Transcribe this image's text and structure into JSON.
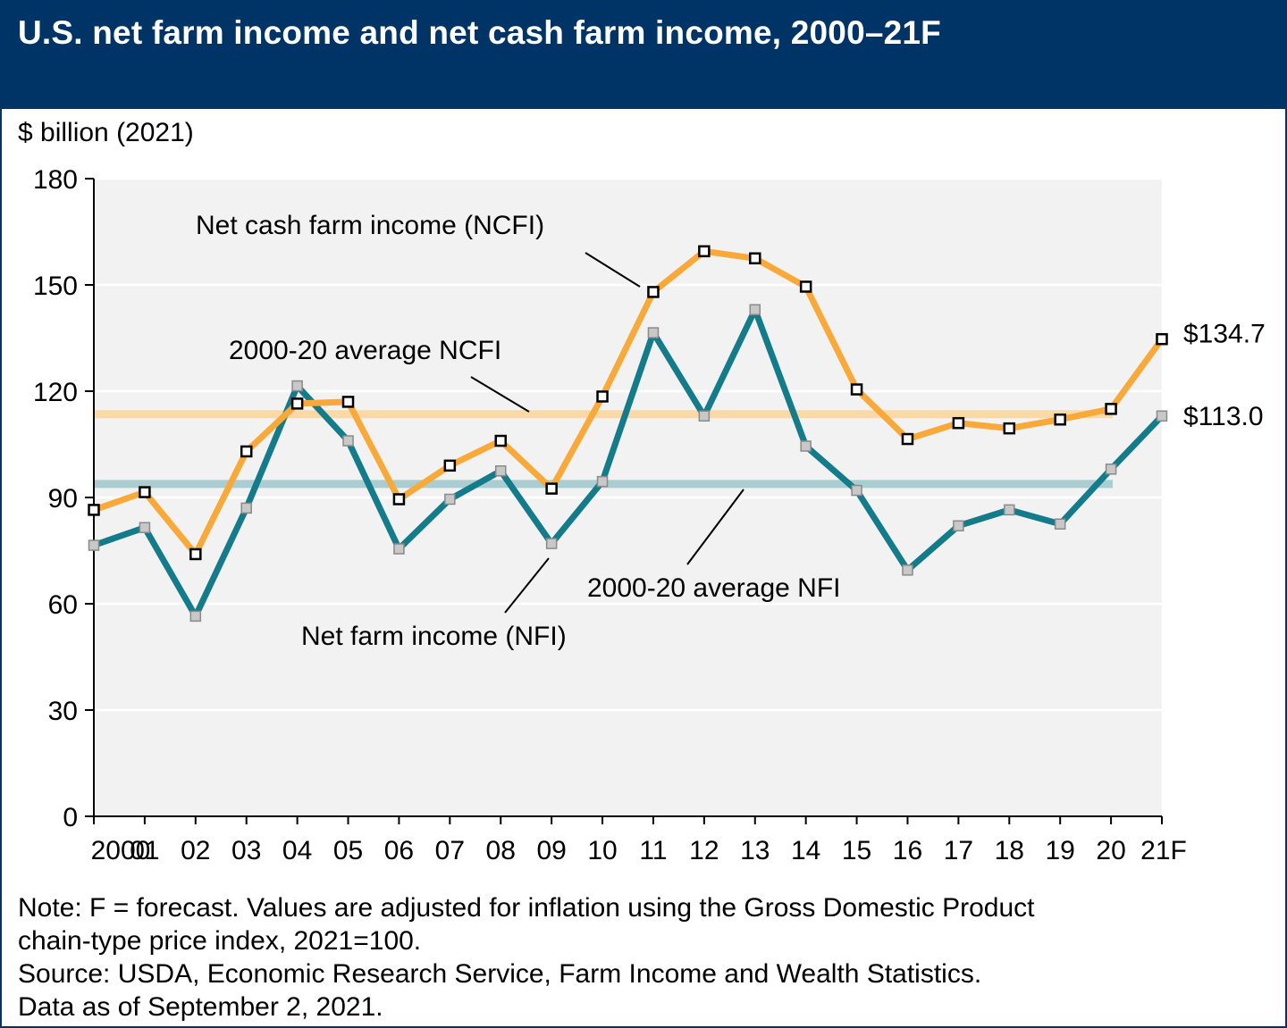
{
  "header": {
    "title": "U.S. net farm income and net cash farm income, 2000–21F"
  },
  "chart_data": {
    "type": "line",
    "title": "U.S. net farm income and net cash farm income, 2000–21F",
    "ylabel": "$ billion (2021)",
    "xlabel": "",
    "ylim": [
      0,
      180
    ],
    "y_ticks": [
      0,
      30,
      60,
      90,
      120,
      150,
      180
    ],
    "categories": [
      "2000",
      "01",
      "02",
      "03",
      "04",
      "05",
      "06",
      "07",
      "08",
      "09",
      "10",
      "11",
      "12",
      "13",
      "14",
      "15",
      "16",
      "17",
      "18",
      "19",
      "20",
      "21F"
    ],
    "series": [
      {
        "name": "Net cash farm income (NCFI)",
        "color": "#f9a93a",
        "values": [
          86.5,
          91.5,
          74.0,
          103.0,
          116.5,
          117.0,
          89.5,
          99.0,
          106.0,
          92.5,
          118.5,
          148.0,
          159.5,
          157.5,
          149.5,
          120.5,
          106.5,
          111.0,
          109.5,
          112.0,
          115.0,
          134.7
        ]
      },
      {
        "name": "Net farm income (NFI)",
        "color": "#137b8a",
        "values": [
          76.5,
          81.5,
          56.5,
          87.0,
          121.5,
          106.0,
          75.5,
          89.5,
          97.5,
          77.0,
          94.5,
          136.5,
          113.0,
          143.0,
          104.5,
          92.0,
          69.5,
          82.0,
          86.5,
          82.5,
          98.0,
          113.0
        ]
      }
    ],
    "reference_lines": [
      {
        "name": "2000-20 average NCFI",
        "value": 113.5,
        "color": "#fbd9a6"
      },
      {
        "name": "2000-20 average NFI",
        "value": 93.8,
        "color": "#a9cdd0"
      }
    ],
    "end_labels": {
      "ncfi": "$134.7",
      "nfi": "$113.0"
    },
    "annotations": {
      "ncfi": "Net cash farm income (NCFI)",
      "avg_ncfi": "2000-20 average NCFI",
      "avg_nfi": "2000-20 average NFI",
      "nfi": "Net farm income (NFI)"
    },
    "grid": "horizontal",
    "colors": {
      "plot_bg": "#f2f2f2",
      "grid": "#ffffff",
      "header": "#003366"
    }
  },
  "notes": {
    "line1": "Note: F = forecast. Values are adjusted for inflation using the Gross Domestic Product",
    "line2": "chain-type price index, 2021=100.",
    "line3": "Source: USDA, Economic Research Service, Farm Income and Wealth Statistics.",
    "line4": "Data as of September 2, 2021."
  }
}
